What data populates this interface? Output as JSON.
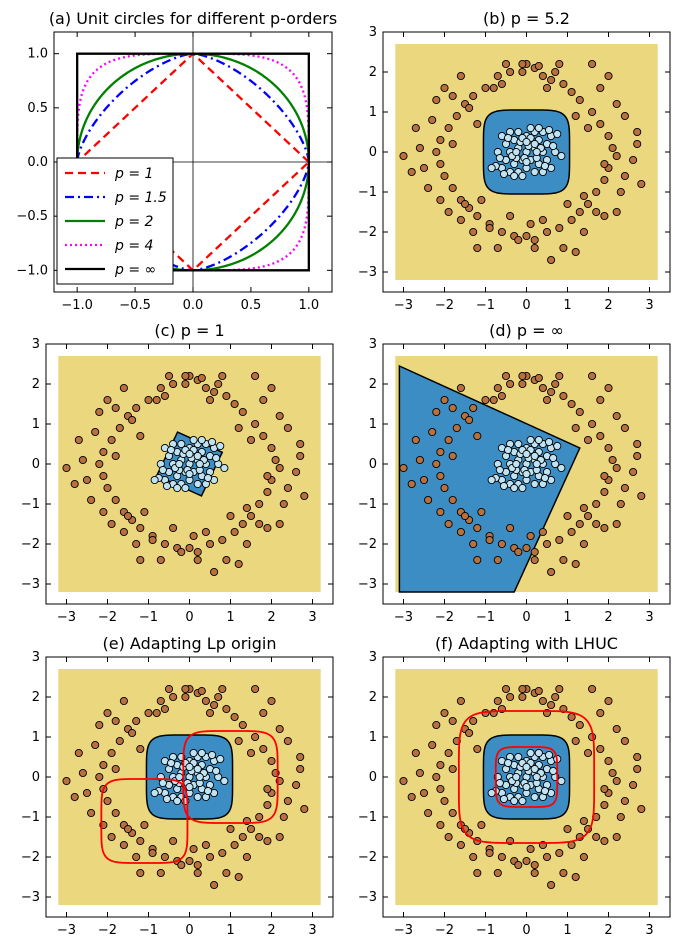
{
  "colors": {
    "background_region": "#EBD77D",
    "inner_region": "#3C8DC3",
    "outer_points": "#B8713E",
    "inner_points": "#BFE3F2",
    "adapted_circle": "#ff0000",
    "p1": "#ff0000",
    "p15": "#0000ff",
    "p2": "#008000",
    "p4": "#ff00ff",
    "pinf": "#000000"
  },
  "chart_data": [
    {
      "id": "a",
      "type": "line",
      "title": "(a) Unit circles for different p-orders",
      "xlim": [
        -1.2,
        1.2
      ],
      "ylim": [
        -1.2,
        1.2
      ],
      "xticks": [
        "−1.0",
        "−0.5",
        "0.0",
        "0.5",
        "1.0"
      ],
      "yticks": [
        "1.0",
        "0.5",
        "0.0",
        "−0.5",
        "−1.0"
      ],
      "xtick_values": [
        -1.0,
        -0.5,
        0.0,
        0.5,
        1.0
      ],
      "ytick_values": [
        1.0,
        0.5,
        0.0,
        -0.5,
        -1.0
      ],
      "legend_position": "lower-left",
      "series": [
        {
          "name": "p = 1",
          "p": 1,
          "color": "#ff0000",
          "style": "dashed"
        },
        {
          "name": "p = 1.5",
          "p": 1.5,
          "color": "#0000ff",
          "style": "dashdot"
        },
        {
          "name": "p = 2",
          "p": 2,
          "color": "#008000",
          "style": "solid"
        },
        {
          "name": "p = 4",
          "p": 4,
          "color": "#ff00ff",
          "style": "dotted"
        },
        {
          "name": "p = ∞",
          "p": "inf",
          "color": "#000000",
          "style": "solid"
        }
      ]
    },
    {
      "id": "b",
      "type": "scatter",
      "title": "(b) p = 5.2",
      "p": 5.2,
      "boundary_radius": 1.05,
      "center": [
        0,
        0
      ]
    },
    {
      "id": "c",
      "type": "scatter",
      "title": "(c) p = 1",
      "p": 1,
      "boundary_radius": 0.85,
      "center": [
        0,
        0
      ]
    },
    {
      "id": "d",
      "type": "scatter",
      "title": "(d) p = ∞",
      "p": "inf",
      "boundary_polygon": [
        [
          -3.1,
          2.45
        ],
        [
          1.3,
          0.4
        ],
        [
          -0.3,
          -3.2
        ],
        [
          -3.1,
          -3.2
        ]
      ]
    },
    {
      "id": "e",
      "type": "scatter",
      "title": "(e) Adapting Lp origin",
      "p": 5.2,
      "boundary_radius": 1.05,
      "center": [
        0,
        0
      ],
      "adapted_circles": [
        {
          "center": [
            1.0,
            0.0
          ],
          "radius": 1.15
        },
        {
          "center": [
            -1.1,
            -1.1
          ],
          "radius": 1.05
        }
      ]
    },
    {
      "id": "f",
      "type": "scatter",
      "title": "(f) Adapting with LHUC",
      "p": 5.2,
      "boundary_radius": 1.05,
      "center": [
        0,
        0
      ],
      "adapted_circles": [
        {
          "center": [
            0,
            0
          ],
          "radius": 1.65
        },
        {
          "center": [
            0,
            0
          ],
          "radius": 0.75
        }
      ]
    }
  ],
  "scatter_axes": {
    "xlim": [
      -3.5,
      3.5
    ],
    "ylim": [
      -3.5,
      3.0
    ],
    "xticks": [
      "−3",
      "−2",
      "−1",
      "0",
      "1",
      "2",
      "3"
    ],
    "yticks": [
      "3",
      "2",
      "1",
      "0",
      "−1",
      "−2",
      "−3"
    ],
    "xtick_values": [
      -3,
      -2,
      -1,
      0,
      1,
      2,
      3
    ],
    "ytick_values": [
      3,
      2,
      1,
      0,
      -1,
      -2,
      -3
    ],
    "region_extent": {
      "x": [
        -3.2,
        3.2
      ],
      "y": [
        -3.2,
        2.7
      ]
    }
  },
  "outer_points": [
    [
      0.0,
      2.2
    ],
    [
      0.2,
      2.1
    ],
    [
      -0.1,
      2.0
    ],
    [
      0.4,
      1.9
    ],
    [
      -0.4,
      2.0
    ],
    [
      0.6,
      1.8
    ],
    [
      -0.7,
      1.9
    ],
    [
      0.9,
      1.7
    ],
    [
      -1.0,
      1.6
    ],
    [
      1.1,
      1.5
    ],
    [
      -1.3,
      1.4
    ],
    [
      1.3,
      1.3
    ],
    [
      -1.5,
      1.2
    ],
    [
      1.6,
      1.0
    ],
    [
      -1.7,
      0.9
    ],
    [
      1.8,
      0.7
    ],
    [
      -1.9,
      0.6
    ],
    [
      2.0,
      0.4
    ],
    [
      -2.1,
      0.3
    ],
    [
      2.1,
      0.1
    ],
    [
      -2.2,
      0.0
    ],
    [
      2.2,
      -0.1
    ],
    [
      -2.1,
      -0.3
    ],
    [
      2.0,
      -0.4
    ],
    [
      -2.0,
      -0.6
    ],
    [
      1.9,
      -0.7
    ],
    [
      -1.8,
      -0.9
    ],
    [
      1.7,
      -1.0
    ],
    [
      -1.6,
      -1.2
    ],
    [
      1.5,
      -1.3
    ],
    [
      -1.4,
      -1.4
    ],
    [
      1.3,
      -1.5
    ],
    [
      -1.2,
      -1.6
    ],
    [
      1.1,
      -1.7
    ],
    [
      -0.9,
      -1.8
    ],
    [
      0.8,
      -1.9
    ],
    [
      -0.6,
      -2.0
    ],
    [
      0.5,
      -2.0
    ],
    [
      -0.3,
      -2.1
    ],
    [
      0.2,
      -2.2
    ],
    [
      0.0,
      -2.1
    ],
    [
      -0.1,
      2.2
    ],
    [
      0.3,
      2.15
    ],
    [
      1.8,
      1.6
    ],
    [
      -1.8,
      1.4
    ],
    [
      2.4,
      0.9
    ],
    [
      -2.3,
      0.8
    ],
    [
      2.6,
      -0.2
    ],
    [
      -2.6,
      0.1
    ],
    [
      -3.0,
      -0.1
    ],
    [
      2.7,
      0.5
    ],
    [
      -2.4,
      -0.9
    ],
    [
      2.3,
      -1.0
    ],
    [
      -1.9,
      -1.5
    ],
    [
      1.9,
      -1.6
    ],
    [
      -1.3,
      -2.0
    ],
    [
      1.4,
      -2.0
    ],
    [
      -0.7,
      -2.4
    ],
    [
      0.9,
      -2.4
    ],
    [
      0.2,
      -2.4
    ],
    [
      -0.2,
      -2.2
    ],
    [
      0.6,
      -2.7
    ],
    [
      -1.6,
      1.9
    ],
    [
      1.6,
      2.2
    ],
    [
      -0.8,
      1.6
    ],
    [
      0.7,
      2.0
    ],
    [
      -1.2,
      0.7
    ],
    [
      1.2,
      0.9
    ],
    [
      -2.2,
      1.3
    ],
    [
      2.2,
      1.2
    ],
    [
      -2.7,
      0.6
    ],
    [
      2.7,
      0.2
    ],
    [
      -2.5,
      -0.4
    ],
    [
      2.4,
      -0.6
    ],
    [
      -1.1,
      -1.2
    ],
    [
      1.0,
      -1.3
    ],
    [
      -1.6,
      -1.7
    ],
    [
      1.7,
      -1.5
    ],
    [
      -0.4,
      -1.6
    ],
    [
      0.4,
      -1.7
    ],
    [
      -1.2,
      -2.4
    ],
    [
      1.2,
      -2.5
    ],
    [
      -2.8,
      -0.5
    ],
    [
      2.8,
      -0.8
    ],
    [
      -0.5,
      2.2
    ],
    [
      0.8,
      2.2
    ],
    [
      -1.4,
      1.1
    ],
    [
      1.5,
      0.6
    ],
    [
      -2.0,
      1.6
    ],
    [
      2.0,
      1.9
    ],
    [
      -0.9,
      -1.9
    ],
    [
      0.1,
      -1.8
    ],
    [
      1.9,
      -0.3
    ],
    [
      -1.8,
      0.2
    ],
    [
      -2.1,
      -1.2
    ],
    [
      2.2,
      -1.5
    ],
    [
      -1.5,
      -1.3
    ],
    [
      1.4,
      -1.1
    ],
    [
      -0.6,
      1.7
    ],
    [
      0.5,
      1.6
    ]
  ],
  "inner_points": [
    [
      0.0,
      0.0
    ],
    [
      0.2,
      0.1
    ],
    [
      -0.2,
      0.1
    ],
    [
      0.1,
      -0.2
    ],
    [
      -0.1,
      -0.2
    ],
    [
      0.3,
      0.3
    ],
    [
      -0.3,
      0.3
    ],
    [
      0.3,
      -0.3
    ],
    [
      -0.3,
      -0.3
    ],
    [
      0.4,
      0.0
    ],
    [
      -0.4,
      0.0
    ],
    [
      0.0,
      0.4
    ],
    [
      0.0,
      -0.4
    ],
    [
      0.5,
      0.2
    ],
    [
      -0.5,
      0.2
    ],
    [
      0.5,
      -0.2
    ],
    [
      -0.5,
      -0.2
    ],
    [
      0.2,
      0.5
    ],
    [
      -0.2,
      0.5
    ],
    [
      0.2,
      -0.5
    ],
    [
      -0.2,
      -0.5
    ],
    [
      0.6,
      0.4
    ],
    [
      -0.6,
      0.4
    ],
    [
      0.6,
      -0.4
    ],
    [
      -0.6,
      -0.4
    ],
    [
      0.1,
      0.6
    ],
    [
      -0.1,
      -0.6
    ],
    [
      0.7,
      0.0
    ],
    [
      -0.7,
      0.0
    ],
    [
      0.4,
      0.5
    ],
    [
      -0.4,
      0.5
    ],
    [
      0.4,
      -0.5
    ],
    [
      -0.4,
      -0.5
    ],
    [
      0.15,
      0.25
    ],
    [
      -0.15,
      0.25
    ],
    [
      0.25,
      -0.15
    ],
    [
      -0.25,
      -0.15
    ],
    [
      0.05,
      0.15
    ],
    [
      -0.05,
      -0.15
    ],
    [
      0.35,
      0.1
    ],
    [
      -0.35,
      -0.1
    ],
    [
      0.1,
      0.35
    ],
    [
      -0.1,
      0.35
    ],
    [
      0.55,
      0.55
    ],
    [
      -0.55,
      -0.55
    ],
    [
      0.3,
      0.6
    ],
    [
      -0.3,
      -0.6
    ],
    [
      0.65,
      0.15
    ],
    [
      -0.65,
      -0.15
    ],
    [
      0.45,
      -0.35
    ],
    [
      -0.45,
      0.35
    ],
    [
      0.0,
      0.25
    ],
    [
      0.25,
      0.0
    ],
    [
      -0.25,
      0.0
    ],
    [
      0.0,
      -0.25
    ],
    [
      0.75,
      0.45
    ],
    [
      -0.75,
      -0.35
    ],
    [
      -0.85,
      -0.4
    ],
    [
      0.85,
      -0.1
    ],
    [
      0.2,
      0.2
    ]
  ]
}
